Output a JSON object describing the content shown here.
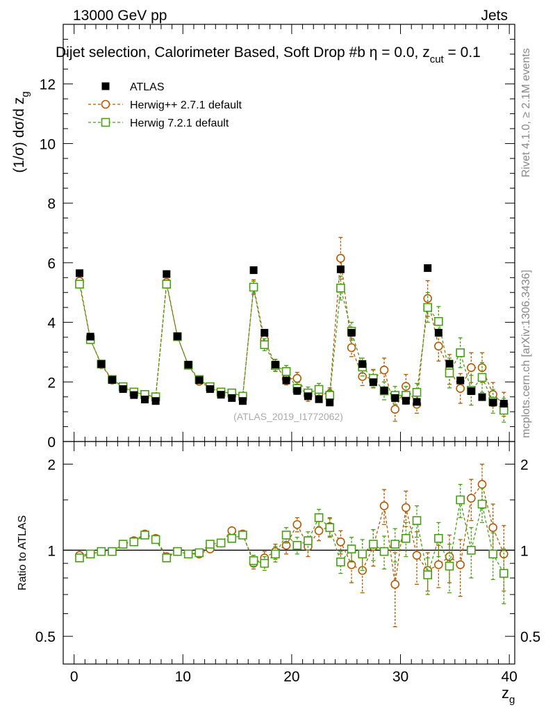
{
  "header": {
    "left": "13000 GeV pp",
    "right": "Jets"
  },
  "title": {
    "main": "Dijet selection, Calorimeter Based, Soft Drop #b",
    "formula": "eta = 0.0, z",
    "formula_sub": "cut",
    "formula_tail": " = 0.1"
  },
  "side_labels": {
    "rivet": "Rivet 4.1.0, ≥ 2.1M events",
    "mcplots": "mcplots.cern.ch [arXiv:1306.3436]"
  },
  "watermark": "(ATLAS_2019_I1772062)",
  "colors": {
    "atlas": "#000000",
    "herwigpp": "#b35900",
    "herwig7": "#44a011",
    "refline": "#000000"
  },
  "chart_data": [
    {
      "id": "main",
      "type": "scatter",
      "ylabel": "(1/σ) dσ/d z",
      "ylabel_sub": "g",
      "xlim": [
        -1,
        40.5
      ],
      "ylim": [
        0,
        14
      ],
      "yticks": [
        0,
        2,
        4,
        6,
        8,
        10,
        12
      ],
      "legend": [
        {
          "key": "atlas",
          "label": "ATLAS",
          "marker": "filled-square"
        },
        {
          "key": "herwigpp",
          "label": "Herwig++ 2.7.1 default",
          "marker": "open-circle"
        },
        {
          "key": "herwig7",
          "label": "Herwig 7.2.1 default",
          "marker": "open-square"
        }
      ],
      "x": [
        0.5,
        1.5,
        2.5,
        3.5,
        4.5,
        5.5,
        6.5,
        7.5,
        8.5,
        9.5,
        10.5,
        11.5,
        12.5,
        13.5,
        14.5,
        15.5,
        16.5,
        17.5,
        18.5,
        19.5,
        20.5,
        21.5,
        22.5,
        23.5,
        24.5,
        25.5,
        26.5,
        27.5,
        28.5,
        29.5,
        30.5,
        31.5,
        32.5,
        33.5,
        34.5,
        35.5,
        36.5,
        37.5,
        38.5,
        39.5
      ],
      "series": [
        {
          "name": "ATLAS",
          "key": "atlas",
          "values": [
            5.65,
            3.52,
            2.6,
            2.07,
            1.76,
            1.56,
            1.41,
            1.36,
            5.62,
            3.53,
            2.58,
            2.06,
            1.76,
            1.57,
            1.46,
            1.36,
            5.75,
            3.65,
            2.58,
            2.05,
            1.7,
            1.52,
            1.42,
            1.31,
            5.78,
            3.65,
            2.6,
            1.99,
            1.71,
            1.46,
            1.37,
            1.33,
            5.82,
            3.65,
            2.61,
            2.05,
            1.69,
            1.49,
            1.31,
            1.27
          ],
          "errors": [
            0.05,
            0.05,
            0.04,
            0.03,
            0.03,
            0.03,
            0.03,
            0.03,
            0.05,
            0.05,
            0.04,
            0.03,
            0.03,
            0.03,
            0.03,
            0.03,
            0.05,
            0.05,
            0.04,
            0.04,
            0.04,
            0.04,
            0.04,
            0.04,
            0.06,
            0.06,
            0.05,
            0.05,
            0.05,
            0.05,
            0.05,
            0.05,
            0.06,
            0.06,
            0.06,
            0.06,
            0.06,
            0.06,
            0.06,
            0.06
          ]
        },
        {
          "name": "Herwig++ 2.7.1 default",
          "key": "herwigpp",
          "values": [
            5.38,
            3.42,
            2.58,
            2.06,
            1.84,
            1.65,
            1.58,
            1.48,
            5.34,
            3.52,
            2.56,
            2.02,
            1.8,
            1.65,
            1.63,
            1.52,
            5.18,
            3.42,
            2.56,
            2.1,
            2.12,
            1.55,
            1.6,
            1.6,
            6.15,
            3.15,
            2.18,
            2.1,
            2.4,
            1.08,
            1.85,
            1.25,
            4.8,
            3.2,
            2.42,
            1.78,
            2.48,
            2.48,
            1.58,
            1.25
          ],
          "errors": [
            0.08,
            0.06,
            0.05,
            0.05,
            0.05,
            0.05,
            0.05,
            0.05,
            0.08,
            0.06,
            0.05,
            0.05,
            0.05,
            0.05,
            0.05,
            0.05,
            0.25,
            0.2,
            0.2,
            0.2,
            0.2,
            0.2,
            0.2,
            0.2,
            0.7,
            0.3,
            0.3,
            0.3,
            0.4,
            0.4,
            0.4,
            0.3,
            0.6,
            0.5,
            0.5,
            0.5,
            0.5,
            0.5,
            0.4,
            0.4
          ]
        },
        {
          "name": "Herwig 7.2.1 default",
          "key": "herwig7",
          "values": [
            5.28,
            3.42,
            2.6,
            2.08,
            1.84,
            1.66,
            1.58,
            1.5,
            5.28,
            3.52,
            2.56,
            2.08,
            1.84,
            1.66,
            1.63,
            1.52,
            5.18,
            3.25,
            2.55,
            2.35,
            1.78,
            1.63,
            1.75,
            1.55,
            5.15,
            3.7,
            2.5,
            2.12,
            1.7,
            1.55,
            1.55,
            1.65,
            4.5,
            4.03,
            2.3,
            2.98,
            1.72,
            2.15,
            1.35,
            1.05
          ],
          "errors": [
            0.08,
            0.06,
            0.05,
            0.05,
            0.05,
            0.05,
            0.05,
            0.05,
            0.08,
            0.06,
            0.05,
            0.05,
            0.05,
            0.05,
            0.05,
            0.05,
            0.2,
            0.2,
            0.2,
            0.2,
            0.2,
            0.2,
            0.2,
            0.2,
            0.4,
            0.3,
            0.3,
            0.3,
            0.3,
            0.3,
            0.3,
            0.3,
            0.5,
            0.5,
            0.5,
            0.5,
            0.5,
            0.5,
            0.4,
            0.4
          ]
        }
      ]
    },
    {
      "id": "ratio",
      "type": "scatter",
      "xlabel": "z",
      "xlabel_sub": "g",
      "ylabel": "Ratio to ATLAS",
      "xlim": [
        -1,
        40.5
      ],
      "ylim": [
        0.4,
        2.4
      ],
      "log_y": true,
      "xticks": [
        0,
        10,
        20,
        30,
        40
      ],
      "yticks": [
        0.5,
        1,
        2
      ],
      "reference": 1,
      "x": [
        0.5,
        1.5,
        2.5,
        3.5,
        4.5,
        5.5,
        6.5,
        7.5,
        8.5,
        9.5,
        10.5,
        11.5,
        12.5,
        13.5,
        14.5,
        15.5,
        16.5,
        17.5,
        18.5,
        19.5,
        20.5,
        21.5,
        22.5,
        23.5,
        24.5,
        25.5,
        26.5,
        27.5,
        28.5,
        29.5,
        30.5,
        31.5,
        32.5,
        33.5,
        34.5,
        35.5,
        36.5,
        37.5,
        38.5,
        39.5
      ],
      "series": [
        {
          "name": "Herwig++ 2.7.1 default",
          "key": "herwigpp",
          "values": [
            0.96,
            0.97,
            0.99,
            0.99,
            1.05,
            1.08,
            1.14,
            1.1,
            0.95,
            0.99,
            0.97,
            0.97,
            1.01,
            1.06,
            1.17,
            1.14,
            0.9,
            0.94,
            0.99,
            1.04,
            1.23,
            1.03,
            1.17,
            1.21,
            1.07,
            0.89,
            0.85,
            1.03,
            1.43,
            0.76,
            1.41,
            0.96,
            0.85,
            0.89,
            0.95,
            0.89,
            1.52,
            1.7,
            1.2,
            0.97
          ],
          "errors": [
            0.02,
            0.02,
            0.02,
            0.02,
            0.02,
            0.02,
            0.02,
            0.02,
            0.02,
            0.02,
            0.02,
            0.02,
            0.02,
            0.02,
            0.02,
            0.02,
            0.04,
            0.05,
            0.06,
            0.07,
            0.07,
            0.08,
            0.09,
            0.09,
            0.1,
            0.12,
            0.14,
            0.15,
            0.2,
            0.22,
            0.2,
            0.2,
            0.13,
            0.15,
            0.18,
            0.2,
            0.25,
            0.3,
            0.25,
            0.25
          ]
        },
        {
          "name": "Herwig 7.2.1 default",
          "key": "herwig7",
          "values": [
            0.94,
            0.97,
            0.99,
            0.99,
            1.05,
            1.07,
            1.13,
            1.09,
            0.94,
            0.99,
            0.97,
            0.98,
            1.05,
            1.06,
            1.1,
            1.13,
            0.92,
            0.9,
            0.97,
            1.13,
            1.04,
            1.08,
            1.3,
            1.2,
            0.91,
            1.01,
            0.97,
            1.05,
            0.99,
            1.05,
            1.1,
            1.27,
            0.82,
            1.1,
            0.88,
            1.5,
            1.0,
            1.45,
            0.97,
            0.83
          ],
          "errors": [
            0.02,
            0.02,
            0.02,
            0.02,
            0.02,
            0.02,
            0.02,
            0.02,
            0.02,
            0.02,
            0.02,
            0.02,
            0.02,
            0.02,
            0.02,
            0.02,
            0.04,
            0.05,
            0.06,
            0.07,
            0.07,
            0.08,
            0.09,
            0.09,
            0.08,
            0.1,
            0.12,
            0.13,
            0.13,
            0.14,
            0.15,
            0.16,
            0.12,
            0.15,
            0.17,
            0.2,
            0.2,
            0.2,
            0.18,
            0.18
          ]
        }
      ]
    }
  ]
}
